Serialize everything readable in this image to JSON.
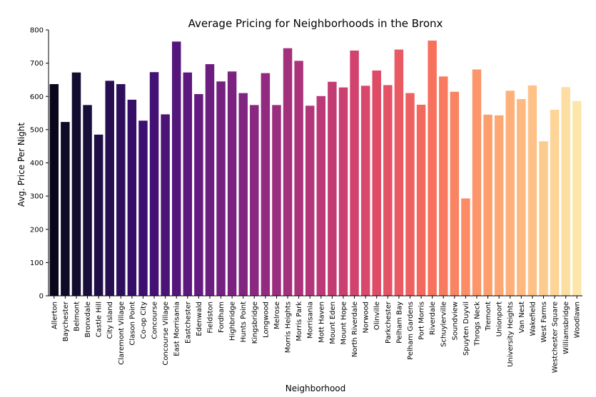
{
  "chart_data": {
    "type": "bar",
    "title": "Average Pricing for Neighborhoods in the Bronx",
    "xlabel": "Neighborhood",
    "ylabel": "Avg. Price Per Night",
    "ylim": [
      0,
      800
    ],
    "yticks": [
      0,
      100,
      200,
      300,
      400,
      500,
      600,
      700,
      800
    ],
    "grid": false,
    "legend": "none",
    "palette": "magma (dark purple to light yellow)",
    "categories": [
      "Allerton",
      "Baychester",
      "Belmont",
      "Bronxdale",
      "Castle Hill",
      "City Island",
      "Claremont Village",
      "Clason Point",
      "Co-op City",
      "Concourse",
      "Concourse Village",
      "East Morrisania",
      "Eastchester",
      "Edenwald",
      "Fieldston",
      "Fordham",
      "Highbridge",
      "Hunts Point",
      "Kingsbridge",
      "Longwood",
      "Melrose",
      "Morris Heights",
      "Morris Park",
      "Morrisania",
      "Mott Haven",
      "Mount Eden",
      "Mount Hope",
      "North Riverdale",
      "Norwood",
      "Olinville",
      "Parkchester",
      "Pelham Bay",
      "Pelham Gardens",
      "Port Morris",
      "Riverdale",
      "Schuylerville",
      "Soundview",
      "Spuyten Duyvil",
      "Throgs Neck",
      "Tremont",
      "Unionport",
      "University Heights",
      "Van Nest",
      "Wakefield",
      "West Farms",
      "Westchester Square",
      "Williamsbridge",
      "Woodlawn"
    ],
    "values": [
      637,
      523,
      672,
      574,
      485,
      647,
      637,
      590,
      527,
      673,
      546,
      765,
      672,
      607,
      697,
      645,
      675,
      610,
      574,
      670,
      574,
      745,
      707,
      572,
      601,
      644,
      627,
      738,
      632,
      678,
      634,
      741,
      610,
      575,
      768,
      660,
      614,
      293,
      681,
      545,
      543,
      617,
      592,
      633,
      465,
      560,
      628,
      586
    ]
  }
}
